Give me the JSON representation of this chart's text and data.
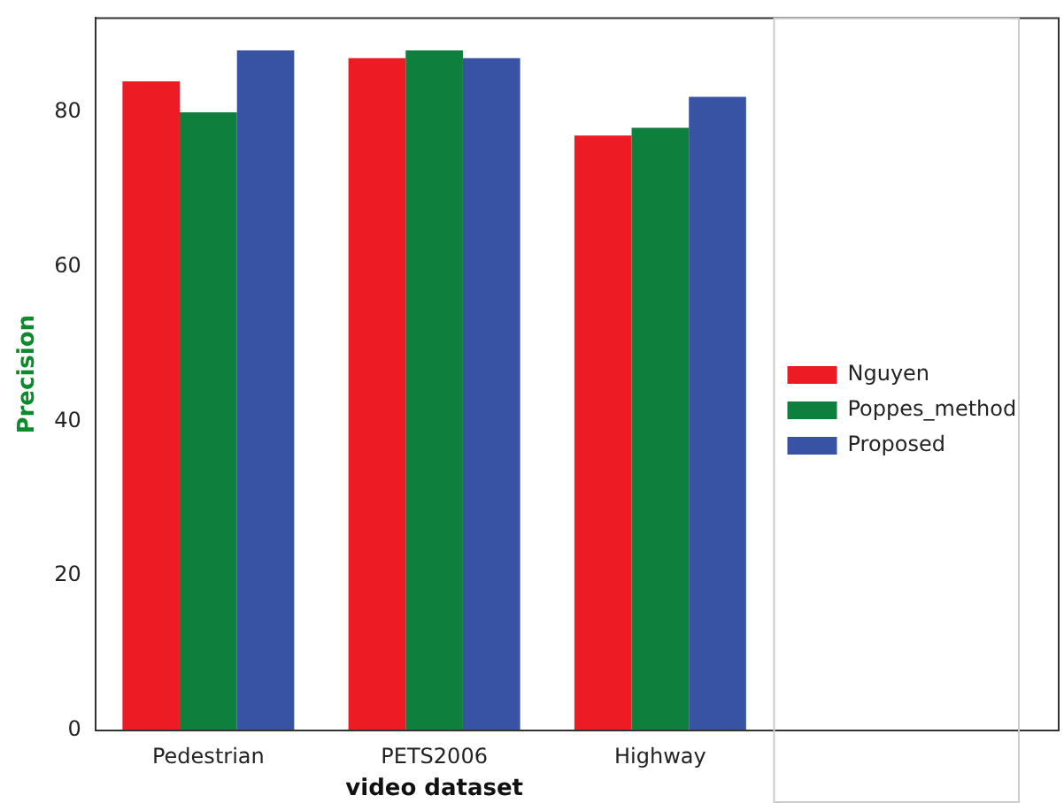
{
  "chart_data": {
    "type": "bar",
    "xlabel": "video dataset",
    "ylabel": "Precision",
    "categories": [
      "Pedestrian",
      "PETS2006",
      "Highway"
    ],
    "series": [
      {
        "name": "Nguyen",
        "color": "#ed1c24",
        "values": [
          84,
          87,
          77
        ]
      },
      {
        "name": "Poppes_method",
        "color": "#0e7f3c",
        "values": [
          80,
          88,
          78
        ]
      },
      {
        "name": "Proposed",
        "color": "#3953a4",
        "values": [
          88,
          87,
          82
        ]
      }
    ],
    "ylim": [
      0,
      92.2
    ],
    "yticks": [
      0,
      20,
      40,
      60,
      80
    ],
    "grid": false,
    "legend": "right"
  }
}
